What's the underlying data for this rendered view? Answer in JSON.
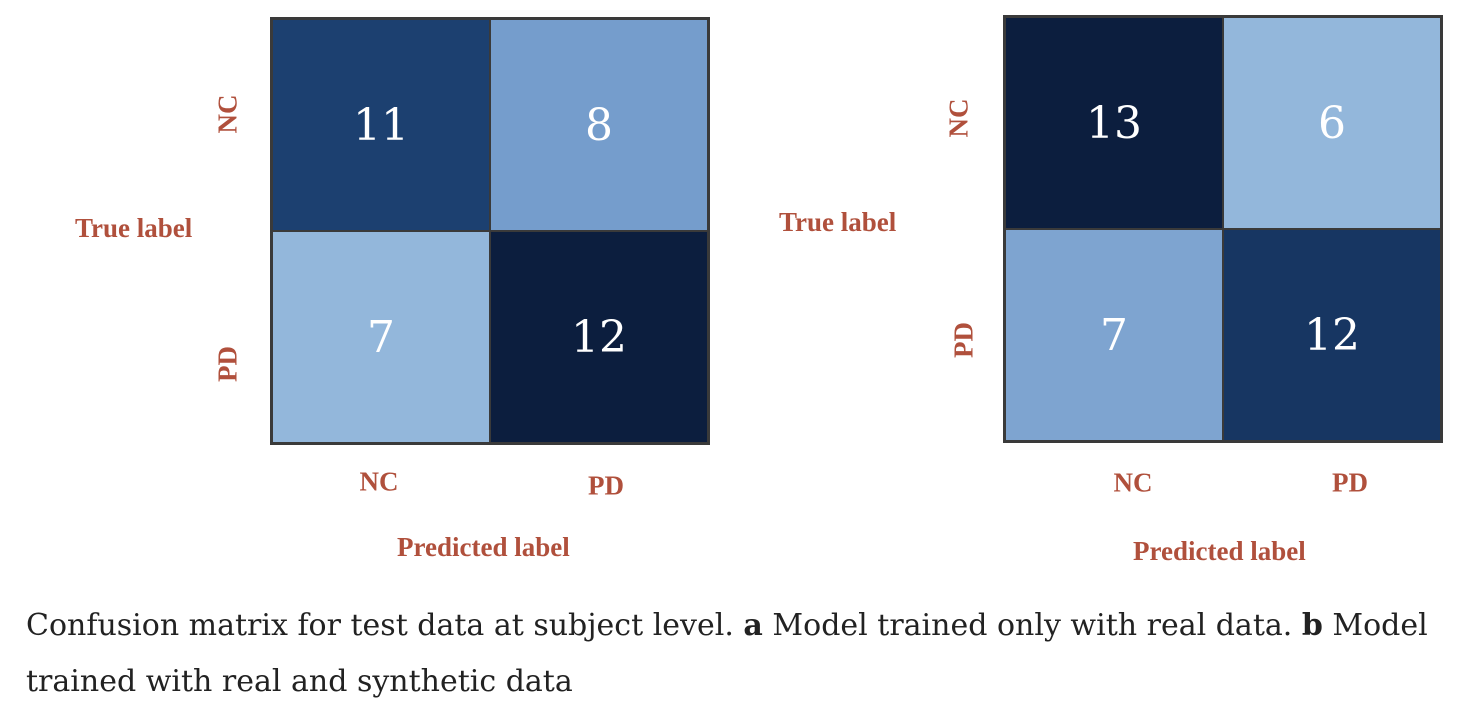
{
  "chart_data": [
    {
      "type": "heatmap",
      "xlabel": "Predicted label",
      "ylabel": "True label",
      "x_categories": [
        "NC",
        "PD"
      ],
      "y_categories": [
        "NC",
        "PD"
      ],
      "values": [
        [
          11,
          8
        ],
        [
          7,
          12
        ]
      ],
      "colormap": "Blues"
    },
    {
      "type": "heatmap",
      "xlabel": "Predicted label",
      "ylabel": "True label",
      "x_categories": [
        "NC",
        "PD"
      ],
      "y_categories": [
        "NC",
        "PD"
      ],
      "values": [
        [
          13,
          6
        ],
        [
          7,
          12
        ]
      ],
      "colormap": "Blues"
    }
  ],
  "caption": {
    "text_1": "Confusion matrix for test data at subject level. ",
    "label_a": "a",
    "text_2": " Model trained only with real data. ",
    "label_b": "b",
    "text_3": " Model trained with real and synthetic data"
  }
}
